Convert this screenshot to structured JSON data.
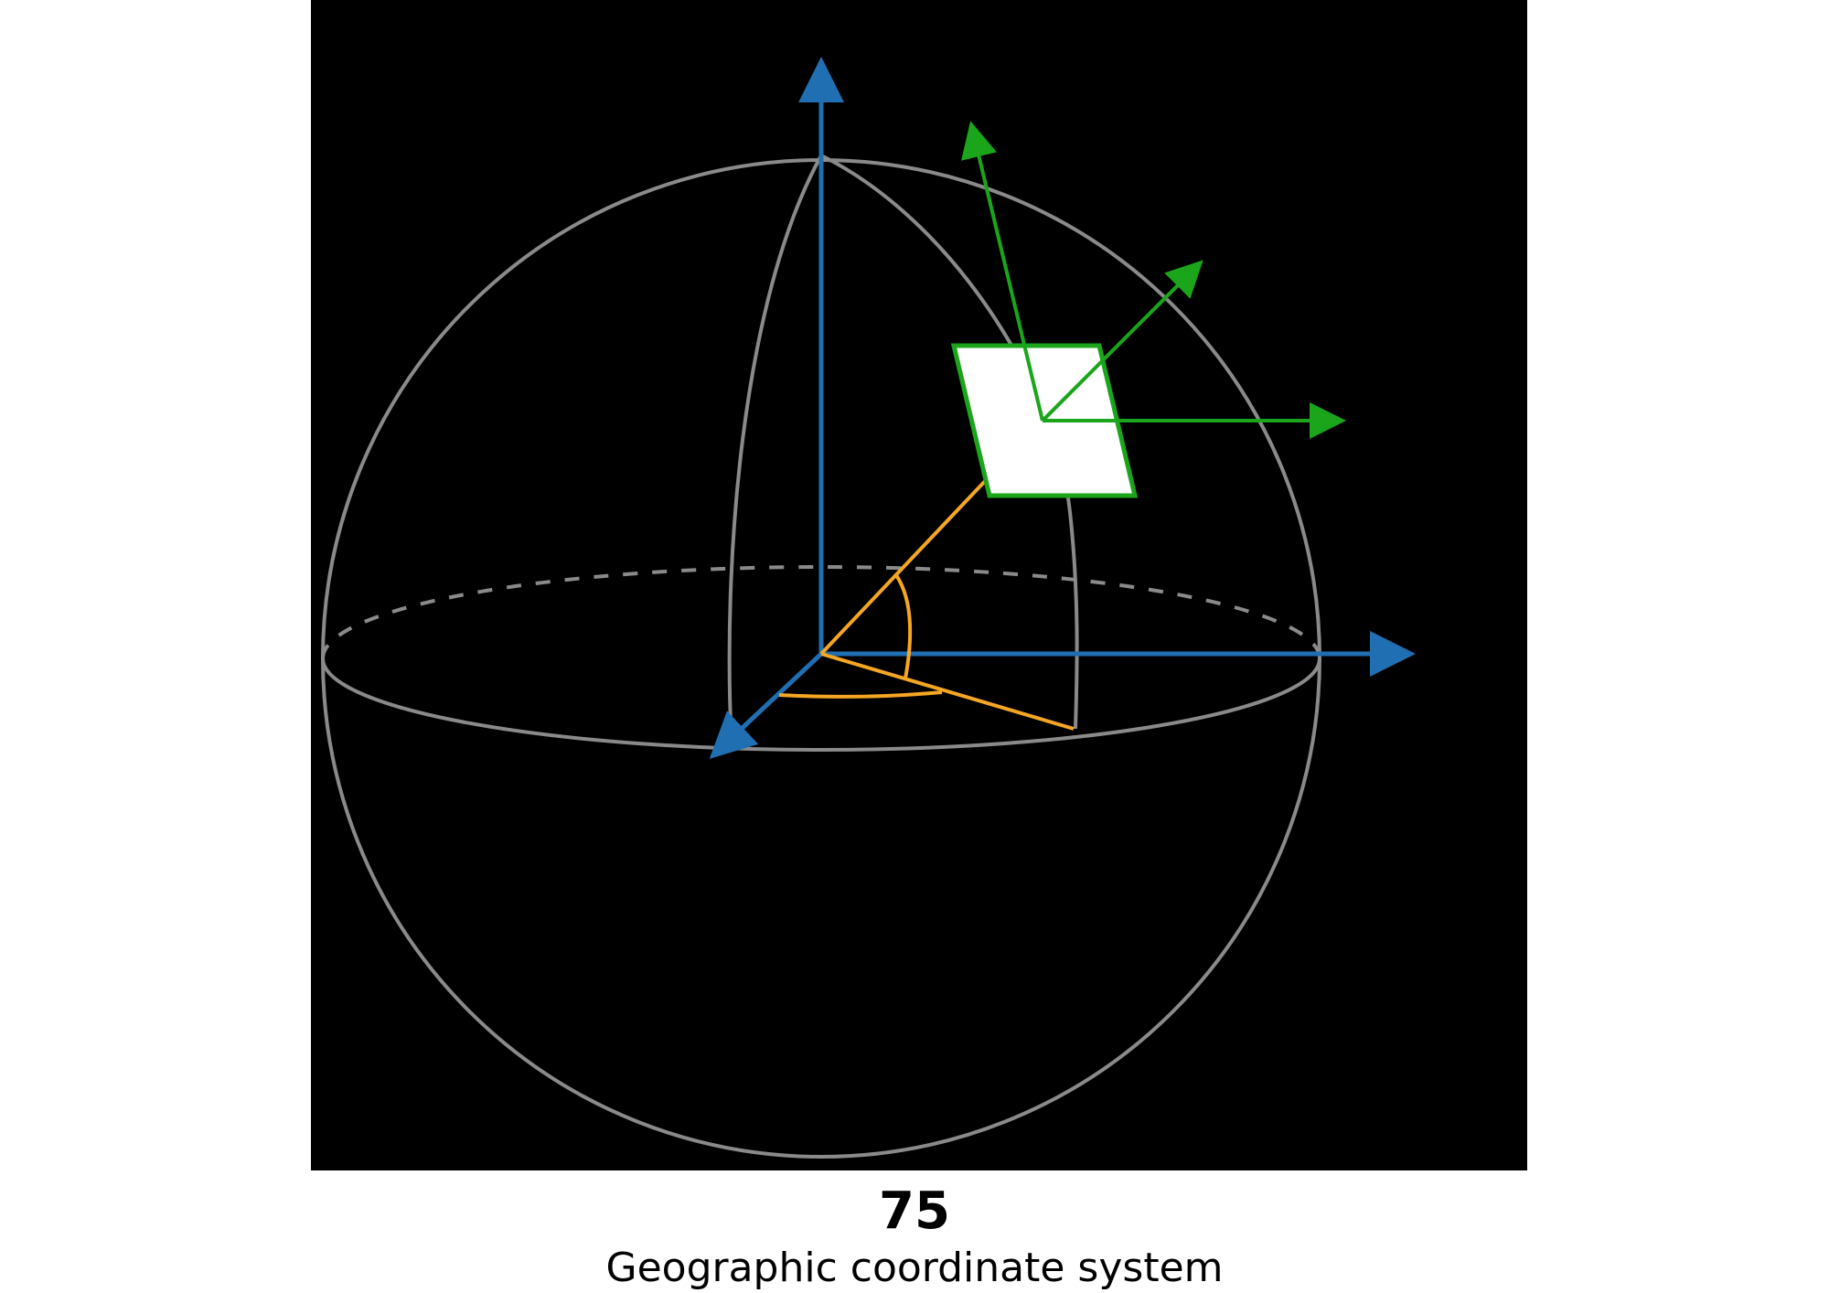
{
  "figure": {
    "number": "75",
    "title": "Geographic coordinate system"
  },
  "colors": {
    "background": "#000000",
    "sphere": "#8a8a8a",
    "axes": "#1f6fb2",
    "angles": "#f5a623",
    "local_frame": "#1aa51a",
    "surface_patch_fill": "#ffffff"
  },
  "diagram": {
    "elements": [
      "sphere-outline-icon",
      "equator-ellipse-icon",
      "meridian-curves-icon",
      "global-z-axis-arrow-icon",
      "global-x-axis-arrow-icon",
      "global-y-axis-arrow-icon",
      "latitude-angle-arc-icon",
      "longitude-angle-arc-icon",
      "surface-patch-icon",
      "local-up-arrow-icon",
      "local-north-arrow-icon",
      "local-east-arrow-icon"
    ]
  }
}
